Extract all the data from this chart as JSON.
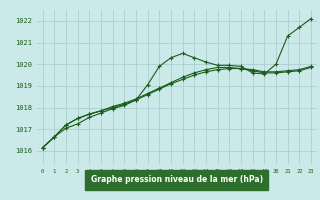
{
  "background_color": "#cce9ea",
  "plot_bg_color": "#cce9ea",
  "grid_color": "#aacfcf",
  "line_color": "#1a5c1a",
  "text_color": "#1a5c1a",
  "label_bg_color": "#2d6e2d",
  "label_text_color": "#ffffff",
  "xlabel": "Graphe pression niveau de la mer (hPa)",
  "ylabel_ticks": [
    1016,
    1017,
    1018,
    1019,
    1020,
    1021,
    1022
  ],
  "xlim": [
    -0.5,
    23.5
  ],
  "ylim": [
    1015.4,
    1022.5
  ],
  "xtick_labels": [
    "0",
    "1",
    "2",
    "3",
    "4",
    "5",
    "6",
    "7",
    "8",
    "9",
    "10",
    "11",
    "12",
    "13",
    "14",
    "15",
    "16",
    "17",
    "18",
    "19",
    "20",
    "21",
    "22",
    "23"
  ],
  "line1_x": [
    0,
    1,
    2,
    3,
    4,
    5,
    6,
    7,
    8,
    9,
    10,
    11,
    12,
    13,
    14,
    15,
    16,
    17,
    18,
    19,
    20,
    21,
    22,
    23
  ],
  "line1_y": [
    1016.15,
    1016.65,
    1017.05,
    1017.25,
    1017.55,
    1017.75,
    1017.95,
    1018.1,
    1018.35,
    1019.05,
    1019.9,
    1020.3,
    1020.5,
    1020.3,
    1020.1,
    1019.95,
    1019.95,
    1019.9,
    1019.6,
    1019.55,
    1020.0,
    1021.3,
    1021.7,
    1022.1
  ],
  "line2_x": [
    0,
    1,
    2,
    3,
    4,
    5,
    6,
    7,
    8,
    9,
    10,
    11,
    12,
    13,
    14,
    15,
    16,
    17,
    18,
    19,
    20,
    21,
    22,
    23
  ],
  "line2_y": [
    1016.15,
    1016.65,
    1017.2,
    1017.5,
    1017.7,
    1017.85,
    1018.0,
    1018.15,
    1018.35,
    1018.6,
    1018.85,
    1019.1,
    1019.3,
    1019.5,
    1019.65,
    1019.75,
    1019.8,
    1019.8,
    1019.75,
    1019.65,
    1019.65,
    1019.7,
    1019.75,
    1019.9
  ],
  "line3_x": [
    0,
    1,
    2,
    3,
    4,
    5,
    6,
    7,
    8,
    9,
    10,
    11,
    12,
    13,
    14,
    15,
    16,
    17,
    18,
    19,
    20,
    21,
    22,
    23
  ],
  "line3_y": [
    1016.15,
    1016.65,
    1017.2,
    1017.5,
    1017.7,
    1017.85,
    1018.05,
    1018.2,
    1018.4,
    1018.65,
    1018.9,
    1019.15,
    1019.4,
    1019.6,
    1019.75,
    1019.85,
    1019.85,
    1019.8,
    1019.7,
    1019.6,
    1019.6,
    1019.65,
    1019.7,
    1019.85
  ],
  "marker_size": 3.5,
  "linewidth": 0.8
}
